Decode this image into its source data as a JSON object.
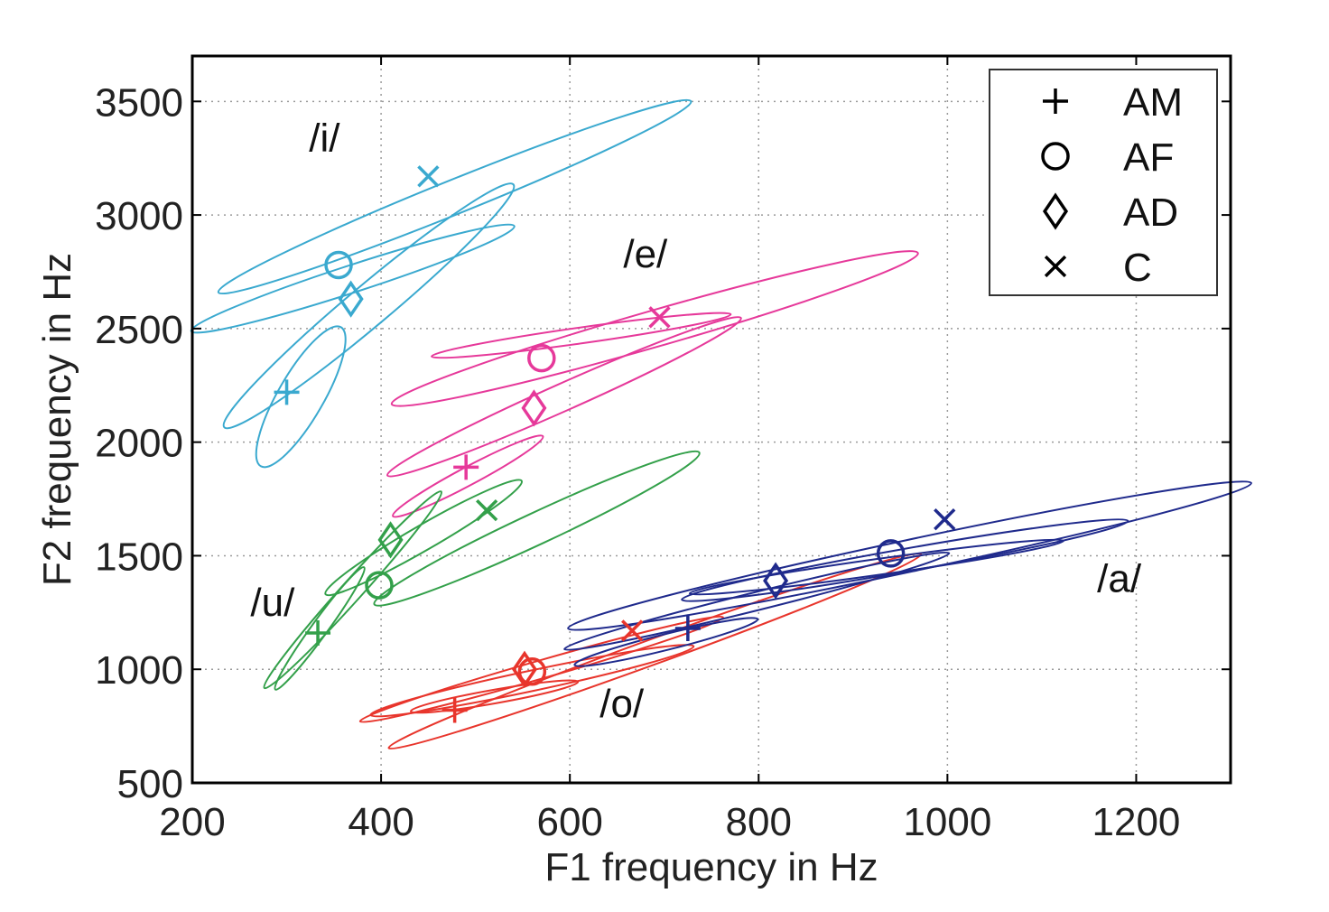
{
  "chart_data": {
    "type": "scatter",
    "xlabel": "F1 frequency in Hz",
    "ylabel": "F2 frequency in Hz",
    "xlim": [
      200,
      1300
    ],
    "ylim": [
      500,
      3700
    ],
    "x_ticks": [
      200,
      400,
      600,
      800,
      1000,
      1200
    ],
    "y_ticks": [
      500,
      1000,
      1500,
      2000,
      2500,
      3000,
      3500
    ],
    "grid": true,
    "legend_position": "top-right",
    "legend": [
      {
        "marker": "plus",
        "label": "AM"
      },
      {
        "marker": "circle",
        "label": "AF"
      },
      {
        "marker": "diamond",
        "label": "AD"
      },
      {
        "marker": "x",
        "label": "C"
      }
    ],
    "vowels": [
      {
        "label": "/i/",
        "label_at": [
          340,
          3280
        ],
        "color": "#3aa9cf",
        "points": [
          {
            "speaker": "AM",
            "marker": "plus",
            "x": 300,
            "y": 2220
          },
          {
            "speaker": "AF",
            "marker": "circle",
            "x": 355,
            "y": 2780
          },
          {
            "speaker": "AD",
            "marker": "diamond",
            "x": 368,
            "y": 2630
          },
          {
            "speaker": "C",
            "marker": "x",
            "x": 450,
            "y": 3170
          }
        ],
        "ellipses": [
          {
            "cx": 315,
            "cy": 2200,
            "rx": 85,
            "ry": 100,
            "angle": 60
          },
          {
            "cx": 387,
            "cy": 2600,
            "rx": 200,
            "ry": 90,
            "angle": 40
          },
          {
            "cx": 370,
            "cy": 2720,
            "rx": 180,
            "ry": 60,
            "angle": 18
          },
          {
            "cx": 478,
            "cy": 3080,
            "rx": 270,
            "ry": 75,
            "angle": 22
          }
        ]
      },
      {
        "label": "/e/",
        "label_at": [
          680,
          2770
        ],
        "color": "#e6399a",
        "points": [
          {
            "speaker": "AM",
            "marker": "plus",
            "x": 490,
            "y": 1890
          },
          {
            "speaker": "AF",
            "marker": "circle",
            "x": 570,
            "y": 2370
          },
          {
            "speaker": "AD",
            "marker": "diamond",
            "x": 562,
            "y": 2150
          },
          {
            "speaker": "C",
            "marker": "x",
            "x": 695,
            "y": 2550
          }
        ],
        "ellipses": [
          {
            "cx": 492,
            "cy": 1850,
            "rx": 90,
            "ry": 40,
            "angle": 28
          },
          {
            "cx": 594,
            "cy": 2200,
            "rx": 205,
            "ry": 60,
            "angle": 24
          },
          {
            "cx": 612,
            "cy": 2470,
            "rx": 160,
            "ry": 35,
            "angle": 8
          },
          {
            "cx": 690,
            "cy": 2500,
            "rx": 290,
            "ry": 80,
            "angle": 16
          }
        ]
      },
      {
        "label": "/u/",
        "label_at": [
          285,
          1235
        ],
        "color": "#33a04a",
        "points": [
          {
            "speaker": "AM",
            "marker": "plus",
            "x": 333,
            "y": 1160
          },
          {
            "speaker": "AF",
            "marker": "circle",
            "x": 398,
            "y": 1370
          },
          {
            "speaker": "AD",
            "marker": "diamond",
            "x": 410,
            "y": 1570
          },
          {
            "speaker": "C",
            "marker": "x",
            "x": 512,
            "y": 1700
          }
        ],
        "ellipses": [
          {
            "cx": 335,
            "cy": 1180,
            "rx": 80,
            "ry": 35,
            "angle": 54
          },
          {
            "cx": 370,
            "cy": 1350,
            "rx": 140,
            "ry": 45,
            "angle": 48
          },
          {
            "cx": 445,
            "cy": 1580,
            "rx": 120,
            "ry": 55,
            "angle": 30
          },
          {
            "cx": 565,
            "cy": 1620,
            "rx": 190,
            "ry": 70,
            "angle": 25
          }
        ]
      },
      {
        "label": "/o/",
        "label_at": [
          655,
          790
        ],
        "color": "#e8352c",
        "points": [
          {
            "speaker": "AM",
            "marker": "plus",
            "x": 478,
            "y": 820
          },
          {
            "speaker": "AF",
            "marker": "circle",
            "x": 560,
            "y": 990
          },
          {
            "speaker": "AD",
            "marker": "diamond",
            "x": 552,
            "y": 1000
          },
          {
            "speaker": "C",
            "marker": "x",
            "x": 666,
            "y": 1170
          }
        ],
        "ellipses": [
          {
            "cx": 520,
            "cy": 880,
            "rx": 90,
            "ry": 30,
            "angle": 10
          },
          {
            "cx": 560,
            "cy": 950,
            "rx": 175,
            "ry": 45,
            "angle": 12
          },
          {
            "cx": 570,
            "cy": 1000,
            "rx": 200,
            "ry": 40,
            "angle": 16
          },
          {
            "cx": 690,
            "cy": 1080,
            "rx": 300,
            "ry": 55,
            "angle": 20
          }
        ]
      },
      {
        "label": "/a/",
        "label_at": [
          1182,
          1340
        ],
        "color": "#1f2a8c",
        "points": [
          {
            "speaker": "AM",
            "marker": "plus",
            "x": 725,
            "y": 1180
          },
          {
            "speaker": "AF",
            "marker": "circle",
            "x": 940,
            "y": 1510
          },
          {
            "speaker": "AD",
            "marker": "diamond",
            "x": 818,
            "y": 1390
          },
          {
            "speaker": "C",
            "marker": "x",
            "x": 997,
            "y": 1660
          }
        ],
        "ellipses": [
          {
            "cx": 702,
            "cy": 1120,
            "rx": 100,
            "ry": 35,
            "angle": 14
          },
          {
            "cx": 798,
            "cy": 1300,
            "rx": 210,
            "ry": 40,
            "angle": 14
          },
          {
            "cx": 925,
            "cy": 1450,
            "rx": 200,
            "ry": 35,
            "angle": 8
          },
          {
            "cx": 955,
            "cy": 1480,
            "rx": 240,
            "ry": 50,
            "angle": 10
          },
          {
            "cx": 960,
            "cy": 1500,
            "rx": 370,
            "ry": 70,
            "angle": 12
          }
        ]
      }
    ]
  }
}
